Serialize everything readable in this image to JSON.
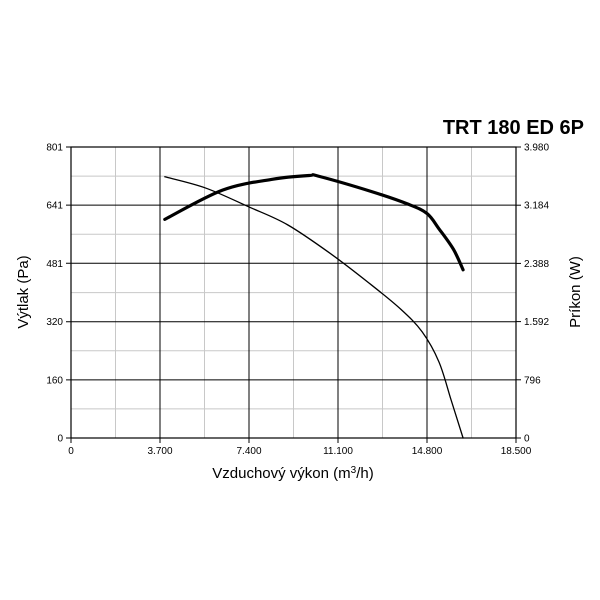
{
  "chart_data": {
    "type": "line",
    "title": "TRT 180 ED 6P",
    "xlabel": {
      "text": "Vzduchový výkon (m",
      "sup": "3",
      "suffix": "/h)"
    },
    "ylabel": "Výtlak (Pa)",
    "y2label": "Príkon (W)",
    "xlim": [
      0,
      18500
    ],
    "ylim": [
      0,
      801
    ],
    "y2lim": [
      0,
      3980
    ],
    "x_ticks": [
      {
        "value": 0,
        "label": "0"
      },
      {
        "value": 3700,
        "label": "3.700"
      },
      {
        "value": 7400,
        "label": "7.400"
      },
      {
        "value": 11100,
        "label": "11.100"
      },
      {
        "value": 14800,
        "label": "14.800"
      },
      {
        "value": 18500,
        "label": "18.500"
      }
    ],
    "x_minor_ticks": [
      1850,
      5550,
      9250,
      12950,
      16650
    ],
    "y_ticks": [
      {
        "value": 0,
        "label": "0"
      },
      {
        "value": 160,
        "label": "160"
      },
      {
        "value": 320,
        "label": "320"
      },
      {
        "value": 481,
        "label": "481"
      },
      {
        "value": 641,
        "label": "641"
      },
      {
        "value": 801,
        "label": "801"
      }
    ],
    "y_minor_ticks": [
      80,
      240,
      400,
      561,
      721
    ],
    "y2_ticks": [
      {
        "value": 0,
        "label": "0"
      },
      {
        "value": 796,
        "label": "796"
      },
      {
        "value": 1592,
        "label": "1.592"
      },
      {
        "value": 2388,
        "label": "2.388"
      },
      {
        "value": 3184,
        "label": "3.184"
      },
      {
        "value": 3980,
        "label": "3.980"
      }
    ],
    "grid": true,
    "series": [
      {
        "axis": "y",
        "color": "#000000",
        "weight": "thin",
        "x": [
          3900,
          5600,
          7400,
          9000,
          10800,
          12400,
          13700,
          14600,
          15300,
          15800,
          16300
        ],
        "y": [
          719,
          688,
          636,
          587,
          507,
          426,
          355,
          292,
          209,
          105,
          0
        ]
      },
      {
        "axis": "y2",
        "color": "#000000",
        "weight": "bold",
        "x": [
          3900,
          6300,
          8400,
          9900,
          10300,
          12500,
          14000,
          14800,
          15300,
          15900,
          16300
        ],
        "y": [
          2990,
          3390,
          3540,
          3590,
          3580,
          3370,
          3200,
          3070,
          2860,
          2580,
          2300
        ]
      }
    ]
  }
}
